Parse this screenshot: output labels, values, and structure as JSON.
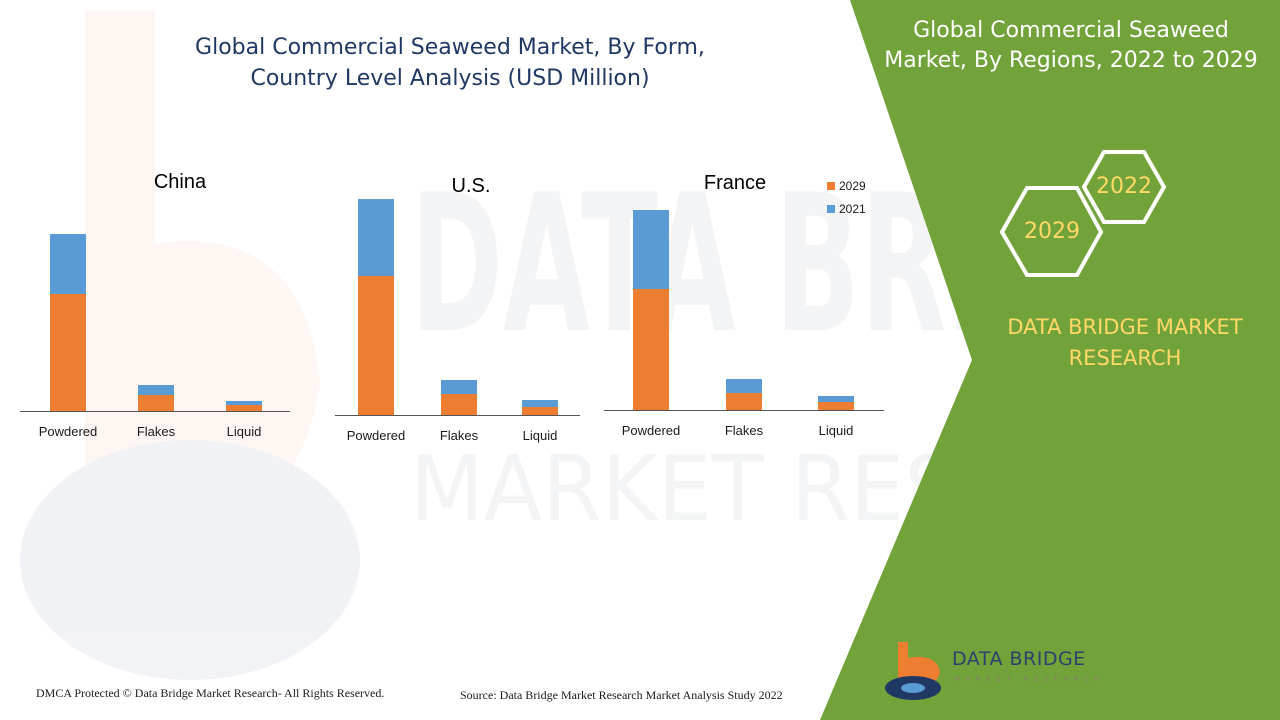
{
  "header": {
    "title_line1": "Global Commercial Seaweed Market, By Form,",
    "title_line2": "Country Level Analysis (USD Million)"
  },
  "sidebar": {
    "title_line1": "Global Commercial Seaweed",
    "title_line2": "Market, By Regions, 2022 to 2029",
    "hex_2022": "2022",
    "hex_2029": "2029",
    "brand_line1": "DATA BRIDGE MARKET",
    "brand_line2": "RESEARCH",
    "bg_color": "#72a23a"
  },
  "footer": {
    "dmca": "DMCA Protected © Data Bridge Market Research- All Rights Reserved.",
    "source": "Source: Data Bridge Market Research Market Analysis Study 2022"
  },
  "logo": {
    "name": "DATA BRIDGE",
    "tagline": "MARKET RESEARCH"
  },
  "colors": {
    "series_2029": "#ed7d31",
    "series_2021": "#5b9bd5",
    "title": "#1f3864",
    "accent_yellow": "#ffd966"
  },
  "chart_data": [
    {
      "type": "bar",
      "stacked": true,
      "title": "China",
      "categories": [
        "Powdered",
        "Flakes",
        "Liquid"
      ],
      "series": [
        {
          "name": "2029",
          "values": [
            117,
            16,
            6
          ]
        },
        {
          "name": "2021",
          "values": [
            60,
            10,
            4
          ]
        }
      ],
      "ylim": [
        0,
        240
      ],
      "grid": false
    },
    {
      "type": "bar",
      "stacked": true,
      "title": "U.S.",
      "categories": [
        "Powdered",
        "Flakes",
        "Liquid"
      ],
      "series": [
        {
          "name": "2029",
          "values": [
            139,
            21,
            8
          ]
        },
        {
          "name": "2021",
          "values": [
            77,
            14,
            7
          ]
        }
      ],
      "ylim": [
        0,
        240
      ],
      "grid": false
    },
    {
      "type": "bar",
      "stacked": true,
      "title": "France",
      "categories": [
        "Powdered",
        "Flakes",
        "Liquid"
      ],
      "series": [
        {
          "name": "2029",
          "values": [
            121,
            17,
            8
          ]
        },
        {
          "name": "2021",
          "values": [
            79,
            14,
            6
          ]
        }
      ],
      "ylim": [
        0,
        240
      ],
      "grid": false,
      "legend": "top-right"
    }
  ]
}
